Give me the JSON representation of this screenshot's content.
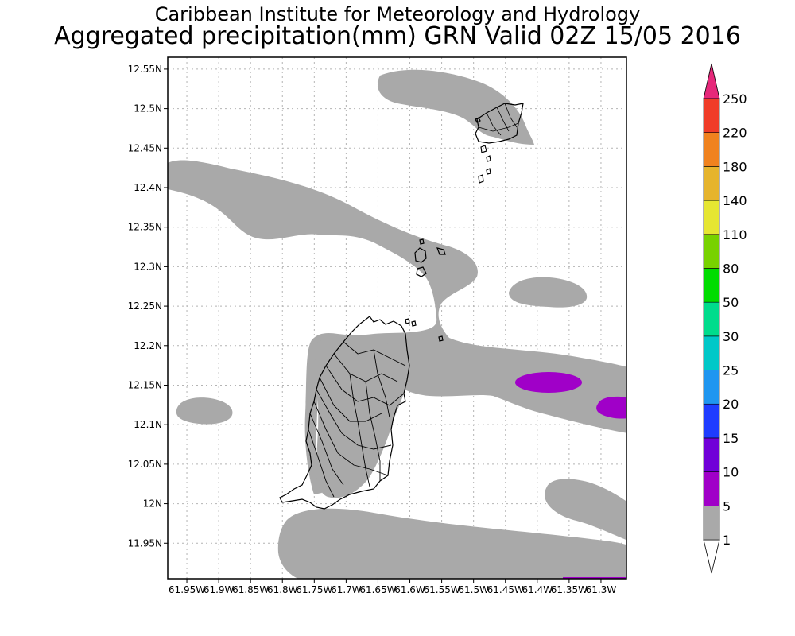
{
  "header": {
    "title_line1": "Caribbean Institute for Meteorology and Hydrology",
    "title_line2": "Aggregated precipitation(mm) GRN Valid 02Z 15/05 2016"
  },
  "map": {
    "lat_range": [
      11.905,
      12.565
    ],
    "lon_range": [
      -61.98,
      -61.26
    ],
    "lat_ticks": [
      "12.55N",
      "12.5N",
      "12.45N",
      "12.4N",
      "12.35N",
      "12.3N",
      "12.25N",
      "12.2N",
      "12.15N",
      "12.1N",
      "12.05N",
      "12N",
      "11.95N"
    ],
    "lon_ticks": [
      "61.95W",
      "61.9W",
      "61.85W",
      "61.8W",
      "61.75W",
      "61.7W",
      "61.65W",
      "61.6W",
      "61.55W",
      "61.5W",
      "61.45W",
      "61.4W",
      "61.35W",
      "61.3W"
    ],
    "grid": "dotted"
  },
  "colorbar": {
    "labels": [
      "1",
      "5",
      "10",
      "15",
      "20",
      "25",
      "30",
      "50",
      "80",
      "110",
      "140",
      "180",
      "220",
      "250"
    ],
    "colors": {
      "below": "#ffffff",
      "bins": [
        "#a9a9a9",
        "#a000c8",
        "#7000d8",
        "#1e3cff",
        "#1f96f0",
        "#00c8c8",
        "#00dc8c",
        "#00dc00",
        "#78d200",
        "#e6e632",
        "#e6b42d",
        "#f0821e",
        "#f03c28"
      ],
      "above": "#e6287a"
    }
  },
  "legend_colors": {
    "precip_1_5": "#a9a9a9",
    "precip_5_10": "#a000c8",
    "coastline": "#000000",
    "grid": "#b4b4b4"
  }
}
